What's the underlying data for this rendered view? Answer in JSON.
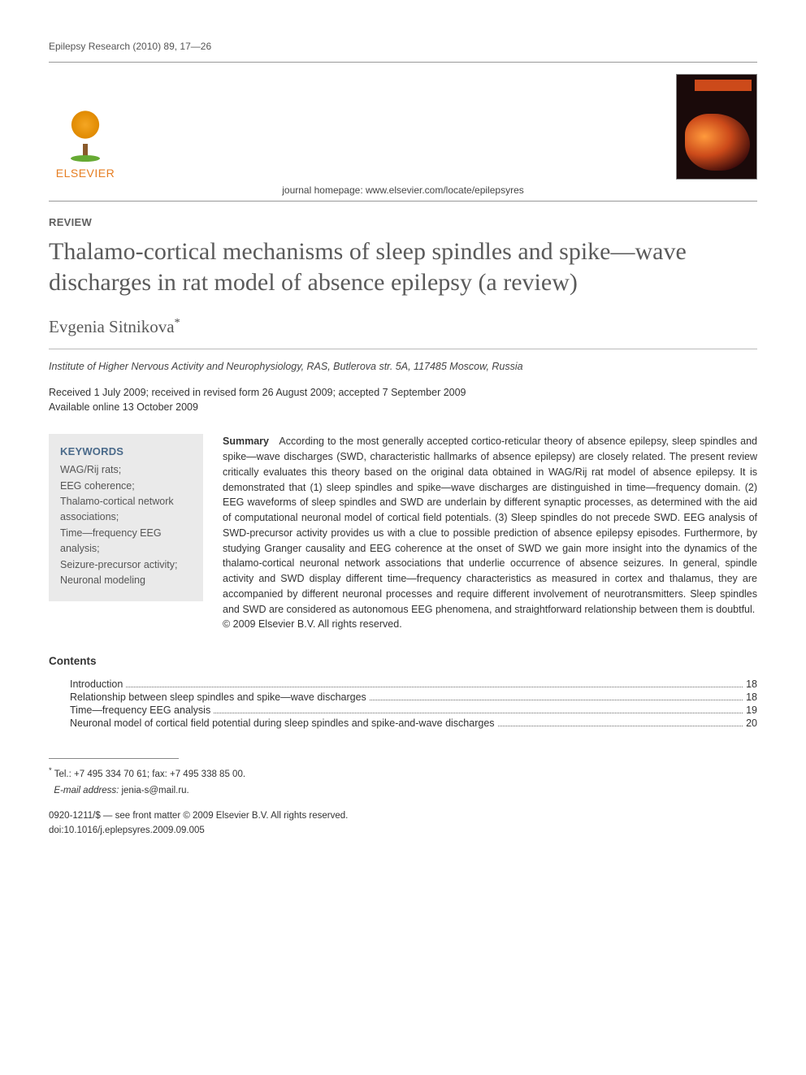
{
  "runningHead": "Epilepsy Research (2010) 89, 17—26",
  "publisher": {
    "name": "ELSEVIER"
  },
  "homepageLine": "journal homepage: www.elsevier.com/locate/epilepsyres",
  "sectionLabel": "REVIEW",
  "title": "Thalamo-cortical mechanisms of sleep spindles and spike—wave discharges in rat model of absence epilepsy (a review)",
  "author": "Evgenia Sitnikova",
  "authorMark": "*",
  "affiliation": "Institute of Higher Nervous Activity and Neurophysiology, RAS, Butlerova str. 5A, 117485 Moscow, Russia",
  "dates": {
    "line1": "Received 1 July 2009; received in revised form 26 August 2009; accepted 7 September 2009",
    "line2": "Available online 13 October 2009"
  },
  "keywords": {
    "heading": "KEYWORDS",
    "items": "WAG/Rij rats;\nEEG coherence;\nThalamo-cortical network associations;\nTime—frequency EEG analysis;\nSeizure-precursor activity;\nNeuronal modeling"
  },
  "summary": {
    "label": "Summary",
    "body": "According to the most generally accepted cortico-reticular theory of absence epilepsy, sleep spindles and spike—wave discharges (SWD, characteristic hallmarks of absence epilepsy) are closely related. The present review critically evaluates this theory based on the original data obtained in WAG/Rij rat model of absence epilepsy. It is demonstrated that (1) sleep spindles and spike—wave discharges are distinguished in time—frequency domain. (2) EEG waveforms of sleep spindles and SWD are underlain by different synaptic processes, as determined with the aid of computational neuronal model of cortical field potentials. (3) Sleep spindles do not precede SWD. EEG analysis of SWD-precursor activity provides us with a clue to possible prediction of absence epilepsy episodes. Furthermore, by studying Granger causality and EEG coherence at the onset of SWD we gain more insight into the dynamics of the thalamo-cortical neuronal network associations that underlie occurrence of absence seizures. In general, spindle activity and SWD display different time—frequency characteristics as measured in cortex and thalamus, they are accompanied by different neuronal processes and require different involvement of neurotransmitters. Sleep spindles and SWD are considered as autonomous EEG phenomena, and straightforward relationship between them is doubtful.",
    "copyright": "© 2009 Elsevier B.V. All rights reserved."
  },
  "contents": {
    "heading": "Contents",
    "rows": [
      {
        "label": "Introduction",
        "page": "18"
      },
      {
        "label": "Relationship between sleep spindles and spike—wave discharges",
        "page": "18"
      },
      {
        "label": "Time—frequency EEG analysis",
        "page": "19"
      },
      {
        "label": "Neuronal model of cortical field potential during sleep spindles and spike-and-wave discharges",
        "page": "20"
      }
    ]
  },
  "footnote": {
    "mark": "*",
    "tel": "Tel.: +7 495 334 70 61; fax: +7 495 338 85 00.",
    "emailLabel": "E-mail address:",
    "email": "jenia-s@mail.ru."
  },
  "copyrightBlock": {
    "line1": "0920-1211/$ — see front matter © 2009 Elsevier B.V. All rights reserved.",
    "line2": "doi:10.1016/j.eplepsyres.2009.09.005"
  }
}
